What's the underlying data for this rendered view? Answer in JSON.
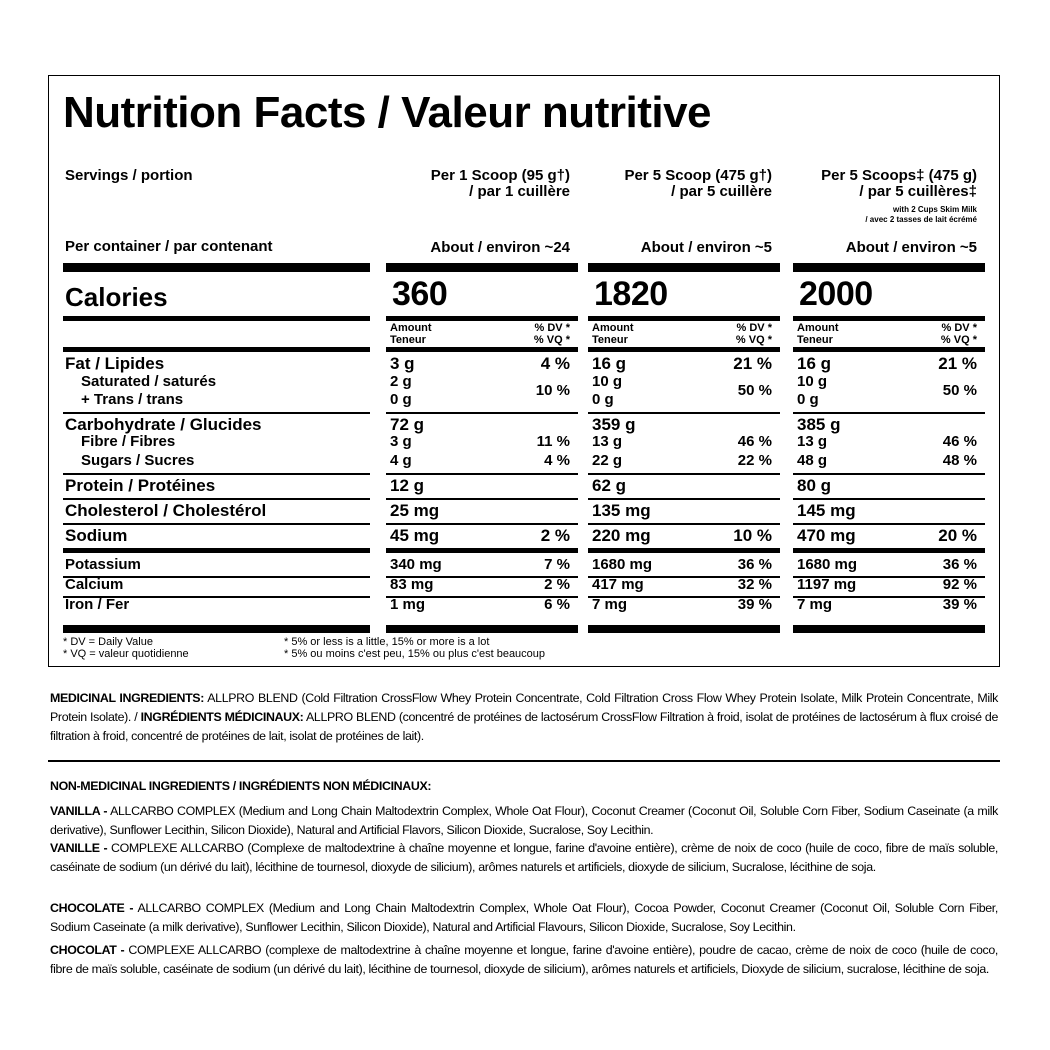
{
  "title": "Nutrition Facts / Valeur nutritive",
  "servings_label": "Servings / portion",
  "container_label": "Per container / par contenant",
  "columns": [
    {
      "serving_line1": "Per 1 Scoop (95 g†)",
      "serving_line2": "/ par 1 cuillère",
      "note1": "",
      "note2": "",
      "per_container": "About / environ ~24",
      "calories": "360"
    },
    {
      "serving_line1": "Per 5 Scoop (475 g†)",
      "serving_line2": "/ par 5 cuillère",
      "note1": "",
      "note2": "",
      "per_container": "About / environ ~5",
      "calories": "1820"
    },
    {
      "serving_line1": "Per 5 Scoops‡ (475 g)",
      "serving_line2": "/ par 5 cuillères‡",
      "note1": "with 2 Cups Skim Milk",
      "note2": "/ avec 2 tasses de lait écrémé",
      "per_container": "About / environ ~5",
      "calories": "2000"
    }
  ],
  "calories_label": "Calories",
  "amount_header": {
    "amount": "Amount",
    "teneur": "Teneur",
    "dv": "% DV *",
    "vq": "% VQ *"
  },
  "nutrients": [
    {
      "label": "Fat / Lipides",
      "values": [
        {
          "amount": "3 g",
          "dv": "4 %"
        },
        {
          "amount": "16 g",
          "dv": "21 %"
        },
        {
          "amount": "16 g",
          "dv": "21 %"
        }
      ]
    },
    {
      "label": "Saturated / saturés",
      "label2": "+ Trans / trans",
      "values": [
        {
          "amount": "2 g",
          "amount2": "0 g",
          "dv": "10 %"
        },
        {
          "amount": "10 g",
          "amount2": "0 g",
          "dv": "50 %"
        },
        {
          "amount": "10 g",
          "amount2": "0 g",
          "dv": "50 %"
        }
      ]
    },
    {
      "label": "Carbohydrate / Glucides",
      "values": [
        {
          "amount": "72 g",
          "dv": ""
        },
        {
          "amount": "359 g",
          "dv": ""
        },
        {
          "amount": "385 g",
          "dv": ""
        }
      ]
    },
    {
      "label": "Fibre / Fibres",
      "values": [
        {
          "amount": "3 g",
          "dv": "11 %"
        },
        {
          "amount": "13 g",
          "dv": "46 %"
        },
        {
          "amount": "13 g",
          "dv": "46 %"
        }
      ]
    },
    {
      "label": "Sugars / Sucres",
      "values": [
        {
          "amount": "4 g",
          "dv": "4 %"
        },
        {
          "amount": "22 g",
          "dv": "22 %"
        },
        {
          "amount": "48 g",
          "dv": "48 %"
        }
      ]
    },
    {
      "label": "Protein / Protéines",
      "values": [
        {
          "amount": "12 g",
          "dv": ""
        },
        {
          "amount": "62 g",
          "dv": ""
        },
        {
          "amount": "80 g",
          "dv": ""
        }
      ]
    },
    {
      "label": "Cholesterol / Cholestérol",
      "values": [
        {
          "amount": "25 mg",
          "dv": ""
        },
        {
          "amount": "135 mg",
          "dv": ""
        },
        {
          "amount": "145 mg",
          "dv": ""
        }
      ]
    },
    {
      "label": "Sodium",
      "values": [
        {
          "amount": "45 mg",
          "dv": "2 %"
        },
        {
          "amount": "220 mg",
          "dv": "10 %"
        },
        {
          "amount": "470 mg",
          "dv": "20 %"
        }
      ]
    },
    {
      "label": "Potassium",
      "values": [
        {
          "amount": "340 mg",
          "dv": "7 %"
        },
        {
          "amount": "1680 mg",
          "dv": "36 %"
        },
        {
          "amount": "1680 mg",
          "dv": "36 %"
        }
      ]
    },
    {
      "label": "Calcium",
      "values": [
        {
          "amount": "83 mg",
          "dv": "2 %"
        },
        {
          "amount": "417 mg",
          "dv": "32 %"
        },
        {
          "amount": "1197 mg",
          "dv": "92 %"
        }
      ]
    },
    {
      "label": "Iron / Fer",
      "values": [
        {
          "amount": "1 mg",
          "dv": "6 %"
        },
        {
          "amount": "7 mg",
          "dv": "39 %"
        },
        {
          "amount": "7 mg",
          "dv": "39 %"
        }
      ]
    }
  ],
  "footnotes": {
    "dv": "* DV = Daily Value",
    "vq": "* VQ = valeur quotidienne",
    "en": "* 5% or less is a little, 15% or more is a lot",
    "fr": "* 5% ou moins c'est peu, 15% ou plus c'est beaucoup"
  },
  "ingredients": {
    "medicinal_heading": "MEDICINAL INGREDIENTS:",
    "medicinal_text": " ALLPRO BLEND (Cold Filtration CrossFlow Whey Protein Concentrate, Cold Filtration Cross Flow Whey Protein Isolate, Milk Protein Concentrate, Milk Protein Isolate). / ",
    "medicinal_heading_fr": "INGRÉDIENTS MÉDICINAUX:",
    "medicinal_text_fr": " ALLPRO BLEND (concentré de protéines de lactosérum CrossFlow Filtration à froid, isolat de protéines de lactosérum à flux croisé de filtration à froid, concentré de protéines de lait, isolat de protéines de lait).",
    "non_medicinal_heading": "NON-MEDICINAL INGREDIENTS / INGRÉDIENTS NON MÉDICINAUX:",
    "vanilla_heading": "VANILLA -",
    "vanilla_text": " ALLCARBO COMPLEX (Medium and Long Chain Maltodextrin Complex, Whole Oat Flour), Coconut Creamer (Coconut Oil, Soluble Corn Fiber, Sodium Caseinate (a milk derivative), Sunflower Lecithin, Silicon Dioxide), Natural and Artificial Flavors, Silicon Dioxide, Sucralose, Soy Lecithin.",
    "vanille_heading": "VANILLE -",
    "vanille_text": " COMPLEXE ALLCARBO (Complexe de maltodextrine à chaîne moyenne et longue, farine d'avoine entière), crème de noix de coco (huile de coco, fibre de maïs soluble, caséinate de sodium (un dérivé du lait), lécithine de tournesol, dioxyde de silicium), arômes naturels et artificiels, dioxyde de silicium, Sucralose, lécithine de soja.",
    "chocolate_heading": "CHOCOLATE -",
    "chocolate_text": " ALLCARBO COMPLEX (Medium and Long Chain Maltodextrin Complex, Whole Oat Flour), Cocoa Powder, Coconut Creamer (Coconut Oil, Soluble Corn Fiber, Sodium Caseinate (a milk derivative), Sunflower Lecithin, Silicon Dioxide), Natural and Artificial Flavours, Silicon Dioxide, Sucralose, Soy Lecithin.",
    "chocolat_heading": "CHOCOLAT -",
    "chocolat_text": " COMPLEXE ALLCARBO (complexe de maltodextrine à chaîne moyenne et longue, farine d'avoine entière), poudre de cacao, crème de noix de coco (huile de coco, fibre de maïs soluble, caséinate de sodium (un dérivé du lait), lécithine de tournesol, dioxyde de silicium), arômes naturels et artificiels, Dioxyde de silicium, sucralose, lécithine de soja."
  }
}
